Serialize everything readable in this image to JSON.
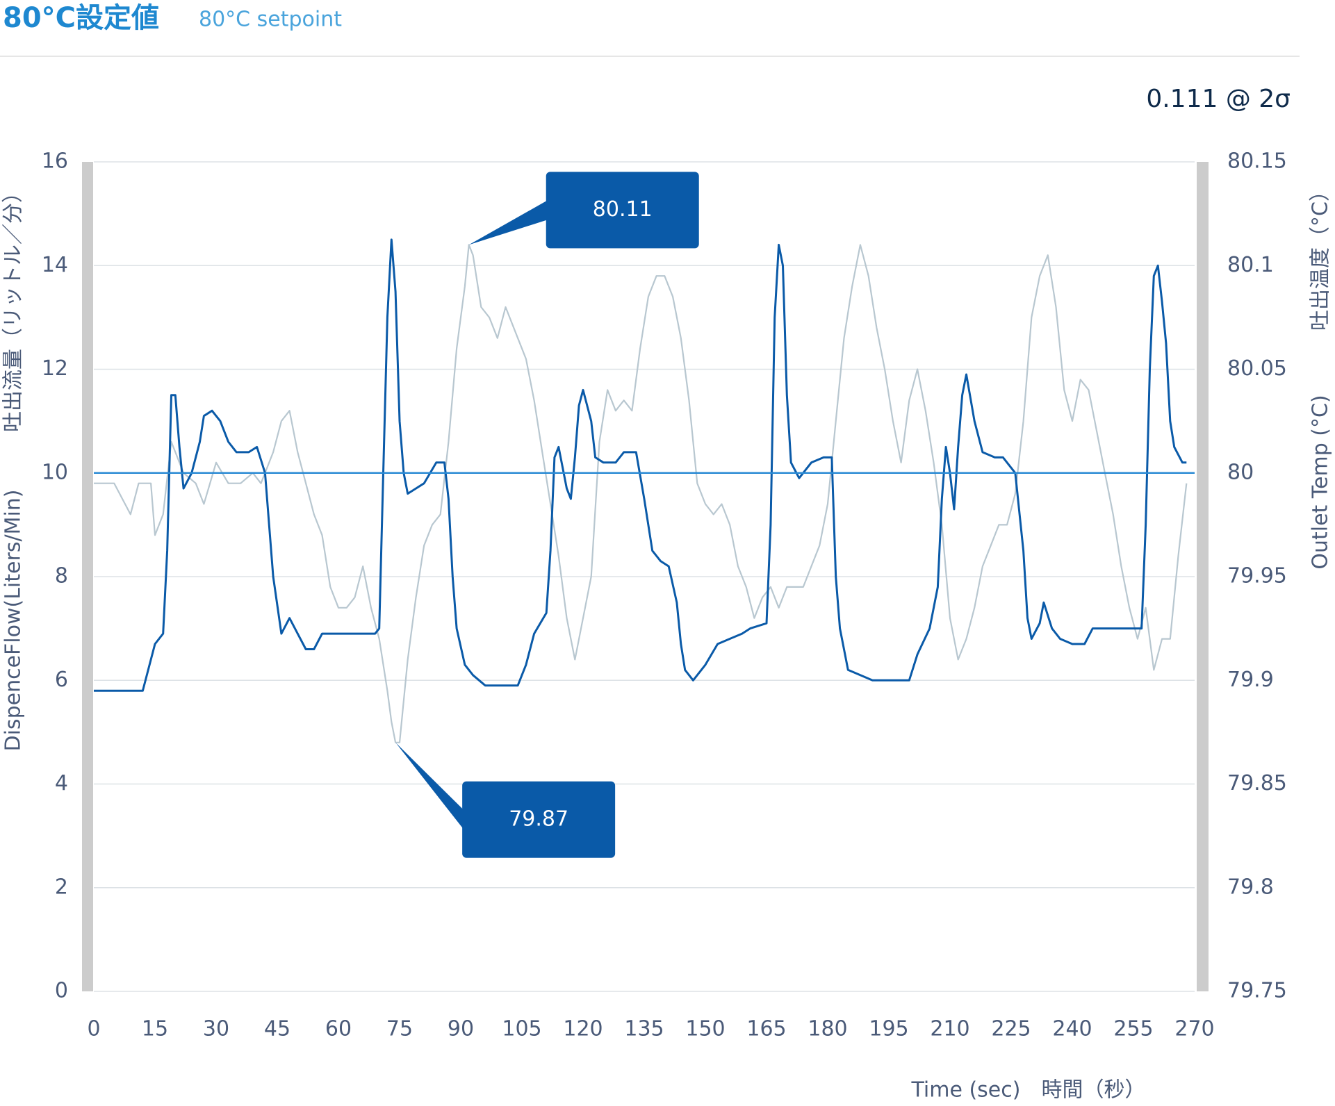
{
  "chart_data": {
    "type": "line",
    "title": "80°C設定値",
    "subtitle": "80°C setpoint",
    "stat_label": "0.111 @ 2σ",
    "ylabel": "DispenceFlow(Liters/Min)",
    "ylabel_ja": "吐出流量（リットル／分）",
    "y2label": "Outlet Temp (°C)",
    "y2label_ja": "吐出温度（°C）",
    "xlabel": "Time (sec)　時間（秒）",
    "xlim": [
      0,
      270
    ],
    "xticks": [
      0,
      15,
      30,
      45,
      60,
      75,
      90,
      105,
      120,
      135,
      150,
      165,
      180,
      195,
      210,
      225,
      240,
      255,
      270
    ],
    "ylim": [
      0,
      16
    ],
    "yticks": [
      0,
      2,
      4,
      6,
      8,
      10,
      12,
      14,
      16
    ],
    "y2lim": [
      79.75,
      80.15
    ],
    "y2ticks": [
      79.75,
      79.8,
      79.85,
      79.9,
      79.95,
      80,
      80.05,
      80.1,
      80.15
    ],
    "grid": true,
    "setpoint": {
      "value": 80,
      "axis": "y2",
      "color": "#2a8ad4"
    },
    "series": [
      {
        "name": "Outlet Temp",
        "axis": "y2",
        "color": "#b8c7d0",
        "x": [
          0,
          5,
          9,
          11,
          14,
          15,
          17,
          19,
          22,
          25,
          27,
          30,
          33,
          36,
          39,
          41,
          44,
          46,
          48,
          50,
          52,
          54,
          56,
          58,
          60,
          62,
          64,
          66,
          68,
          70,
          72,
          73,
          74,
          75,
          77,
          79,
          81,
          83,
          85,
          87,
          89,
          91,
          92,
          93,
          95,
          97,
          99,
          101,
          104,
          106,
          108,
          110,
          112,
          114,
          116,
          118,
          120,
          122,
          124,
          126,
          128,
          130,
          132,
          134,
          136,
          138,
          140,
          142,
          144,
          146,
          148,
          150,
          152,
          154,
          156,
          158,
          160,
          162,
          164,
          166,
          168,
          170,
          172,
          174,
          176,
          178,
          180,
          182,
          184,
          186,
          188,
          190,
          192,
          194,
          196,
          198,
          200,
          202,
          204,
          206,
          208,
          210,
          212,
          214,
          216,
          218,
          220,
          222,
          224,
          226,
          228,
          230,
          232,
          234,
          236,
          238,
          240,
          242,
          244,
          246,
          248,
          250,
          252,
          254,
          256,
          258,
          260,
          262,
          264,
          266,
          268
        ],
        "values": [
          79.995,
          79.995,
          79.98,
          79.995,
          79.995,
          79.97,
          79.98,
          80.015,
          80,
          79.995,
          79.985,
          80.005,
          79.995,
          79.995,
          80,
          79.995,
          80.01,
          80.025,
          80.03,
          80.01,
          79.995,
          79.98,
          79.97,
          79.945,
          79.935,
          79.935,
          79.94,
          79.955,
          79.935,
          79.92,
          79.895,
          79.88,
          79.87,
          79.87,
          79.91,
          79.94,
          79.965,
          79.975,
          79.98,
          80.015,
          80.06,
          80.09,
          80.11,
          80.105,
          80.08,
          80.075,
          80.065,
          80.08,
          80.065,
          80.055,
          80.035,
          80.01,
          79.985,
          79.96,
          79.93,
          79.91,
          79.93,
          79.95,
          80.015,
          80.04,
          80.03,
          80.035,
          80.03,
          80.06,
          80.085,
          80.095,
          80.095,
          80.085,
          80.065,
          80.035,
          79.995,
          79.985,
          79.98,
          79.985,
          79.975,
          79.955,
          79.945,
          79.93,
          79.94,
          79.945,
          79.935,
          79.945,
          79.945,
          79.945,
          79.955,
          79.965,
          79.985,
          80.025,
          80.065,
          80.09,
          80.11,
          80.095,
          80.07,
          80.05,
          80.025,
          80.005,
          80.035,
          80.05,
          80.03,
          80.005,
          79.975,
          79.93,
          79.91,
          79.92,
          79.935,
          79.955,
          79.965,
          79.975,
          79.975,
          79.99,
          80.025,
          80.075,
          80.095,
          80.105,
          80.08,
          80.04,
          80.025,
          80.045,
          80.04,
          80.02,
          80,
          79.98,
          79.955,
          79.935,
          79.92,
          79.935,
          79.905,
          79.92,
          79.92,
          79.96,
          79.995
        ]
      },
      {
        "name": "DispenceFlow",
        "axis": "y",
        "color": "#0a5aa8",
        "x": [
          0,
          3,
          6,
          9,
          12,
          15,
          17,
          18,
          19,
          20,
          21,
          22,
          24,
          26,
          27,
          29,
          31,
          33,
          35,
          38,
          40,
          42,
          44,
          46,
          48,
          50,
          52,
          54,
          56,
          60,
          65,
          69,
          70,
          71,
          72,
          73,
          74,
          75,
          76,
          77,
          79,
          81,
          84,
          86,
          87,
          88,
          89,
          91,
          93,
          96,
          100,
          104,
          106,
          108,
          111,
          112,
          113,
          114,
          116,
          117,
          118,
          119,
          120,
          122,
          123,
          125,
          128,
          130,
          133,
          135,
          137,
          139,
          141,
          143,
          144,
          145,
          147,
          150,
          153,
          156,
          159,
          161,
          165,
          166,
          167,
          168,
          169,
          170,
          171,
          173,
          176,
          179,
          181,
          182,
          183,
          185,
          188,
          191,
          195,
          200,
          202,
          205,
          207,
          208,
          209,
          210,
          211,
          212,
          213,
          214,
          216,
          218,
          221,
          223,
          226,
          228,
          229,
          230,
          232,
          233,
          235,
          237,
          240,
          243,
          245,
          249,
          253,
          257,
          258,
          259,
          260,
          261,
          262,
          263,
          264,
          265,
          267,
          268
        ],
        "values": [
          5.8,
          5.8,
          5.8,
          5.8,
          5.8,
          6.7,
          6.9,
          8.5,
          11.5,
          11.5,
          10.5,
          9.7,
          10,
          10.6,
          11.1,
          11.2,
          11,
          10.6,
          10.4,
          10.4,
          10.5,
          10,
          8,
          6.9,
          7.2,
          6.9,
          6.6,
          6.6,
          6.9,
          6.9,
          6.9,
          6.9,
          7,
          10,
          13,
          14.5,
          13.5,
          11,
          10,
          9.6,
          9.7,
          9.8,
          10.2,
          10.2,
          9.5,
          8,
          7,
          6.3,
          6.1,
          5.9,
          5.9,
          5.9,
          6.3,
          6.9,
          7.3,
          8.5,
          10.3,
          10.5,
          9.7,
          9.5,
          10.3,
          11.3,
          11.6,
          11,
          10.3,
          10.2,
          10.2,
          10.4,
          10.4,
          9.5,
          8.5,
          8.3,
          8.2,
          7.5,
          6.7,
          6.2,
          6,
          6.3,
          6.7,
          6.8,
          6.9,
          7,
          7.1,
          9,
          13,
          14.4,
          14,
          11.5,
          10.2,
          9.9,
          10.2,
          10.3,
          10.3,
          8,
          7,
          6.2,
          6.1,
          6,
          6,
          6,
          6.5,
          7,
          7.8,
          9.5,
          10.5,
          10,
          9.3,
          10.5,
          11.5,
          11.9,
          11,
          10.4,
          10.3,
          10.3,
          10,
          8.5,
          7.2,
          6.8,
          7.1,
          7.5,
          7,
          6.8,
          6.7,
          6.7,
          7,
          7,
          7,
          7,
          9,
          12,
          13.8,
          14,
          13.3,
          12.5,
          11,
          10.5,
          10.2,
          10.2
        ]
      }
    ],
    "annotations": [
      {
        "label": "80.11",
        "x": 92,
        "value": 80.11,
        "axis": "y2",
        "color": "#0a5aa8"
      },
      {
        "label": "79.87",
        "x": 74,
        "value": 79.87,
        "axis": "y2",
        "color": "#0a5aa8"
      }
    ]
  }
}
